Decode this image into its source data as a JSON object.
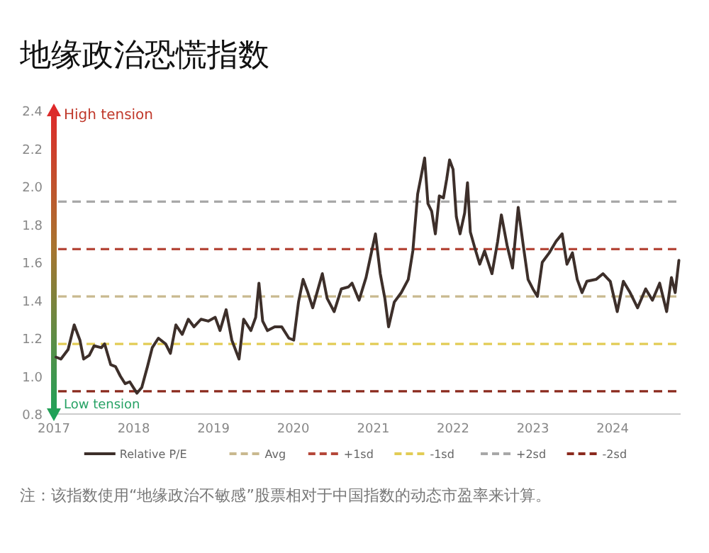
{
  "chart_data": {
    "type": "line",
    "title": "地缘政治恐慌指数",
    "x": [
      "2017-01-11",
      "2017-02-02",
      "2017-03-07",
      "2017-04-04",
      "2017-04-30",
      "2017-05-17",
      "2017-06-12",
      "2017-07-04",
      "2017-08-06",
      "2017-08-21",
      "2017-09-18",
      "2017-10-10",
      "2017-11-01",
      "2017-11-23",
      "2017-12-14",
      "2018-01-16",
      "2018-02-07",
      "2018-03-05",
      "2018-03-27",
      "2018-04-24",
      "2018-05-27",
      "2018-06-18",
      "2018-07-13",
      "2018-08-11",
      "2018-09-08",
      "2018-10-04",
      "2018-11-05",
      "2018-12-08",
      "2019-01-09",
      "2019-01-31",
      "2019-02-28",
      "2019-03-26",
      "2019-04-28",
      "2019-05-19",
      "2019-06-21",
      "2019-07-13",
      "2019-07-28",
      "2019-08-14",
      "2019-09-05",
      "2019-10-08",
      "2019-11-09",
      "2019-12-12",
      "2020-01-03",
      "2020-01-25",
      "2020-02-15",
      "2020-03-08",
      "2020-03-30",
      "2020-04-21",
      "2020-05-13",
      "2020-06-04",
      "2020-07-06",
      "2020-08-08",
      "2020-09-09",
      "2020-09-26",
      "2020-10-28",
      "2020-11-29",
      "2020-12-25",
      "2021-01-11",
      "2021-02-02",
      "2021-02-23",
      "2021-03-12",
      "2021-04-07",
      "2021-05-09",
      "2021-06-10",
      "2021-07-01",
      "2021-07-23",
      "2021-08-09",
      "2021-08-24",
      "2021-09-08",
      "2021-09-25",
      "2021-10-12",
      "2021-10-30",
      "2021-11-18",
      "2021-12-03",
      "2021-12-16",
      "2022-01-01",
      "2022-01-16",
      "2022-02-02",
      "2022-02-23",
      "2022-03-08",
      "2022-03-21",
      "2022-04-12",
      "2022-05-03",
      "2022-05-25",
      "2022-06-28",
      "2022-07-24",
      "2022-08-10",
      "2022-09-05",
      "2022-09-30",
      "2022-10-26",
      "2022-11-18",
      "2022-12-10",
      "2023-01-01",
      "2023-01-22",
      "2023-02-13",
      "2023-03-17",
      "2023-04-17",
      "2023-05-15",
      "2023-06-06",
      "2023-07-01",
      "2023-07-23",
      "2023-08-14",
      "2023-09-05",
      "2023-10-17",
      "2023-11-18",
      "2023-12-21",
      "2024-01-22",
      "2024-02-19",
      "2024-03-21",
      "2024-04-24",
      "2024-05-31",
      "2024-07-01",
      "2024-08-03",
      "2024-09-04",
      "2024-09-26",
      "2024-10-13",
      "2024-10-30"
    ],
    "series": [
      {
        "name": "Relative P/E",
        "color": "#3d2f2a",
        "values": [
          1.1,
          1.09,
          1.14,
          1.27,
          1.19,
          1.09,
          1.11,
          1.16,
          1.15,
          1.17,
          1.06,
          1.05,
          1.0,
          0.96,
          0.97,
          0.91,
          0.94,
          1.05,
          1.15,
          1.2,
          1.17,
          1.12,
          1.27,
          1.22,
          1.3,
          1.26,
          1.3,
          1.29,
          1.31,
          1.24,
          1.35,
          1.19,
          1.09,
          1.3,
          1.24,
          1.31,
          1.49,
          1.29,
          1.24,
          1.26,
          1.26,
          1.2,
          1.19,
          1.39,
          1.51,
          1.44,
          1.36,
          1.45,
          1.54,
          1.41,
          1.34,
          1.46,
          1.47,
          1.49,
          1.4,
          1.52,
          1.66,
          1.75,
          1.54,
          1.41,
          1.26,
          1.39,
          1.44,
          1.51,
          1.66,
          1.96,
          2.06,
          2.15,
          1.91,
          1.87,
          1.75,
          1.95,
          1.94,
          2.04,
          2.14,
          2.09,
          1.84,
          1.75,
          1.86,
          2.02,
          1.76,
          1.67,
          1.59,
          1.66,
          1.54,
          1.71,
          1.85,
          1.69,
          1.57,
          1.89,
          1.69,
          1.51,
          1.46,
          1.42,
          1.6,
          1.65,
          1.71,
          1.75,
          1.59,
          1.65,
          1.51,
          1.44,
          1.5,
          1.51,
          1.54,
          1.5,
          1.34,
          1.5,
          1.44,
          1.36,
          1.46,
          1.4,
          1.49,
          1.34,
          1.52,
          1.44,
          1.61
        ]
      }
    ],
    "xlim": [
      "2017-01-01",
      "2024-11-07"
    ],
    "xticks": [
      {
        "value": "2017",
        "label": "2017"
      },
      {
        "value": "2018",
        "label": "2018"
      },
      {
        "value": "2019",
        "label": "2019"
      },
      {
        "value": "2020",
        "label": "2020"
      },
      {
        "value": "2021",
        "label": "2021"
      },
      {
        "value": "2022",
        "label": "2022"
      },
      {
        "value": "2023",
        "label": "2023"
      },
      {
        "value": "2024",
        "label": "2024"
      }
    ],
    "ylim": [
      0.8,
      2.4
    ],
    "yticks": [
      {
        "value": 0.8,
        "label": "0.8"
      },
      {
        "value": 1.0,
        "label": "1.0"
      },
      {
        "value": 1.2,
        "label": "1.2"
      },
      {
        "value": 1.4,
        "label": "1.4"
      },
      {
        "value": 1.6,
        "label": "1.6"
      },
      {
        "value": 1.8,
        "label": "1.8"
      },
      {
        "value": 2.0,
        "label": "2.0"
      },
      {
        "value": 2.2,
        "label": "2.2"
      },
      {
        "value": 2.4,
        "label": "2.4"
      }
    ],
    "ref_lines": [
      {
        "axis": "y",
        "value": 1.42,
        "label": "Avg",
        "color": "#c9b98f",
        "line_style": "dashed"
      },
      {
        "axis": "y",
        "value": 1.67,
        "label": "+1sd",
        "color": "#b5483a",
        "line_style": "dashed"
      },
      {
        "axis": "y",
        "value": 1.17,
        "label": "-1sd",
        "color": "#e2cc55",
        "line_style": "dashed"
      },
      {
        "axis": "y",
        "value": 1.92,
        "label": "+2sd",
        "color": "#a8a8a8",
        "line_style": "dashed"
      },
      {
        "axis": "y",
        "value": 0.92,
        "label": "-2sd",
        "color": "#8b2a1e",
        "line_style": "dashed"
      }
    ],
    "legend": "bottom",
    "annotations": [
      "High tension",
      "Low tension",
      "注：该指数使用“地缘政治不敏感”股票相对于中国指数的动态市盈率来计算。"
    ]
  }
}
